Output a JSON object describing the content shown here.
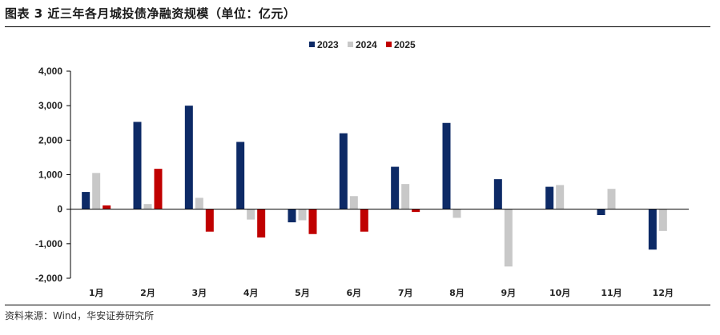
{
  "figure": {
    "title": "图表 3 近三年各月城投债净融资规模（单位：亿元）",
    "source": "资料来源：Wind，华安证券研究所"
  },
  "colors": {
    "2023": "#0d2a66",
    "2024": "#c8c8c8",
    "2025": "#c00000"
  },
  "chart_data": {
    "type": "bar",
    "categories": [
      "1月",
      "2月",
      "3月",
      "4月",
      "5月",
      "6月",
      "7月",
      "8月",
      "9月",
      "10月",
      "11月",
      "12月"
    ],
    "series": [
      {
        "name": "2023",
        "values": [
          500,
          2530,
          3000,
          1950,
          -380,
          2200,
          1230,
          2500,
          870,
          650,
          -170,
          -1170
        ]
      },
      {
        "name": "2024",
        "values": [
          1050,
          150,
          330,
          -300,
          -320,
          380,
          730,
          -250,
          -1660,
          700,
          590,
          -630
        ]
      },
      {
        "name": "2025",
        "values": [
          110,
          1170,
          -650,
          -820,
          -720,
          -650,
          -80,
          null,
          null,
          null,
          null,
          null
        ]
      }
    ],
    "ylim": [
      -2000,
      4000
    ],
    "yticks": [
      4000,
      3000,
      2000,
      1000,
      0,
      -1000,
      -2000
    ],
    "ytick_labels": [
      "4,000",
      "3,000",
      "2,000",
      "1,000",
      "0",
      "-1,000",
      "-2,000"
    ],
    "legend_position": "top-center",
    "grid": false
  }
}
